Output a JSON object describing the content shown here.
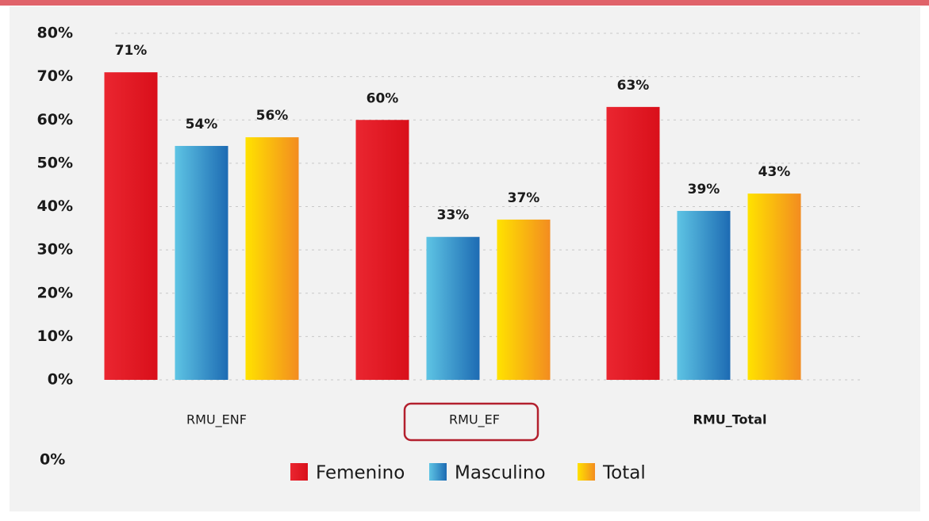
{
  "chart_data": {
    "type": "bar",
    "categories": [
      "RMU_ENF",
      "RMU_EF",
      "RMU_Total"
    ],
    "series": [
      {
        "name": "Femenino",
        "color": "#e41c26",
        "gradient": [
          "#ea2630",
          "#d90f1a"
        ],
        "values": [
          71,
          60,
          63
        ],
        "value_labels": [
          "71%",
          "60%",
          "63%"
        ]
      },
      {
        "name": "Masculino",
        "color": "#3c97cf",
        "gradient": [
          "#5ec4e4",
          "#1d6bb3"
        ],
        "values": [
          54,
          33,
          39
        ],
        "value_labels": [
          "54%",
          "33%",
          "39%"
        ]
      },
      {
        "name": "Total",
        "color": "#fbb812",
        "gradient": [
          "#ffe200",
          "#f38c20"
        ],
        "values": [
          56,
          37,
          43
        ],
        "value_labels": [
          "56%",
          "37%",
          "43%"
        ]
      }
    ],
    "ylim": [
      0,
      80
    ],
    "yticks": [
      {
        "value": 0,
        "label": "0%"
      },
      {
        "value": 10,
        "label": "10%"
      },
      {
        "value": 20,
        "label": "20%"
      },
      {
        "value": 30,
        "label": "30%"
      },
      {
        "value": 40,
        "label": "40%"
      },
      {
        "value": 50,
        "label": "50%"
      },
      {
        "value": 60,
        "label": "60%"
      },
      {
        "value": 70,
        "label": "70%"
      },
      {
        "value": 80,
        "label": "80%"
      }
    ],
    "grid": true,
    "annotations": [
      "0%"
    ]
  }
}
